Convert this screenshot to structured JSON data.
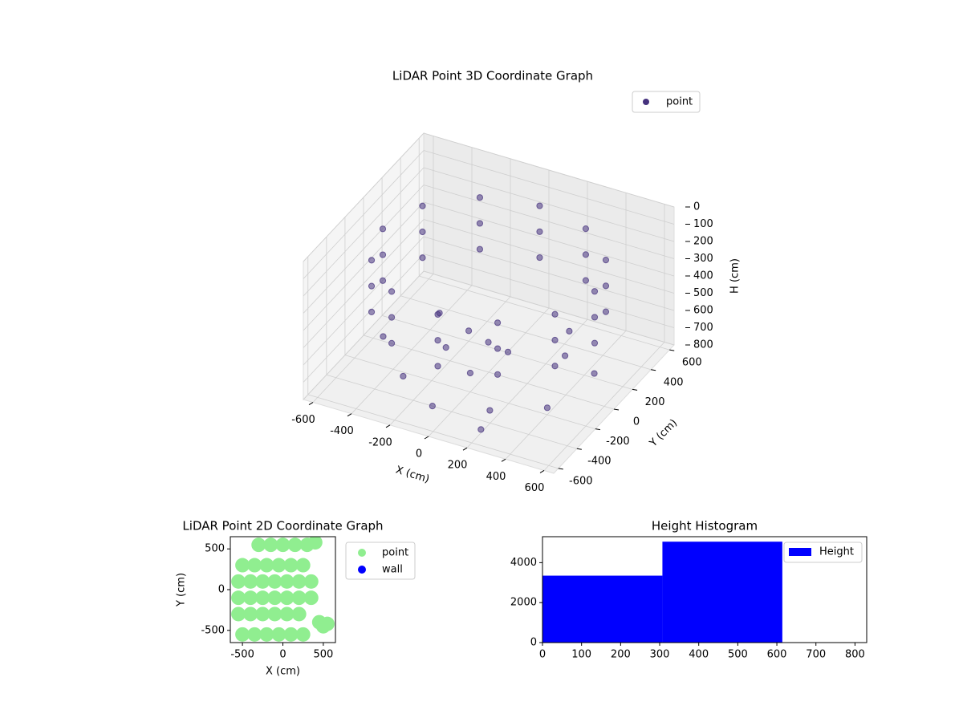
{
  "chart_data": [
    {
      "type": "scatter3d",
      "title": "LiDAR Point 3D Coordinate Graph",
      "xlabel": "X (cm)",
      "ylabel": "Y (cm)",
      "zlabel": "H (cm)",
      "xlim": [
        -650,
        650
      ],
      "ylim": [
        -650,
        650
      ],
      "zlim": [
        0,
        800
      ],
      "z_inverted": true,
      "xticks": [
        -600,
        -400,
        -200,
        0,
        200,
        400,
        600
      ],
      "yticks": [
        -600,
        -400,
        -200,
        0,
        200,
        400,
        600
      ],
      "zticks": [
        0,
        100,
        200,
        300,
        400,
        500,
        600,
        700,
        800
      ],
      "grid": true,
      "legend": "upper right",
      "series": [
        {
          "name": "point",
          "color": "#46327e",
          "x": [
            550,
            476,
            275,
            0,
            -275,
            -476,
            -550,
            -476,
            -275,
            0,
            275,
            476,
            550,
            476,
            275,
            0,
            -275,
            -476,
            -550,
            -476,
            -275,
            0,
            275,
            476,
            550,
            476,
            275,
            0,
            -275,
            -476,
            -550,
            -476,
            -275,
            0,
            275,
            476,
            -500,
            -300,
            -100,
            200,
            100,
            -50,
            300,
            400,
            0,
            -200,
            150,
            -400,
            500,
            250,
            -150
          ],
          "y": [
            0,
            275,
            476,
            550,
            476,
            275,
            0,
            -275,
            -476,
            -550,
            -476,
            -275,
            0,
            275,
            476,
            550,
            476,
            275,
            0,
            -275,
            -476,
            -550,
            -476,
            -275,
            0,
            275,
            476,
            550,
            476,
            275,
            0,
            -275,
            -476,
            -550,
            -476,
            -275,
            -100,
            -300,
            -400,
            -500,
            0,
            100,
            200,
            -200,
            -200,
            200,
            -300,
            300,
            100,
            350,
            -150
          ],
          "h": [
            150,
            150,
            150,
            150,
            150,
            150,
            150,
            150,
            150,
            150,
            150,
            150,
            300,
            300,
            300,
            300,
            300,
            300,
            300,
            300,
            300,
            300,
            300,
            300,
            450,
            450,
            450,
            450,
            450,
            450,
            450,
            450,
            450,
            450,
            450,
            450,
            700,
            750,
            800,
            780,
            650,
            700,
            720,
            760,
            690,
            740,
            800,
            760,
            700,
            680,
            620
          ]
        }
      ]
    },
    {
      "type": "scatter",
      "title": "LiDAR Point 2D Coordinate Graph",
      "xlabel": "X (cm)",
      "ylabel": "Y (cm)",
      "xlim": [
        -650,
        650
      ],
      "ylim": [
        -650,
        650
      ],
      "xticks": [
        -500,
        0,
        500
      ],
      "yticks": [
        -500,
        0,
        500
      ],
      "legend": "outside right",
      "series": [
        {
          "name": "point",
          "color": "#90ee90",
          "x": [
            -500,
            -350,
            -200,
            -50,
            100,
            250,
            -550,
            -400,
            -250,
            -100,
            50,
            200,
            -550,
            -400,
            -250,
            -100,
            50,
            200,
            350,
            -550,
            -400,
            -250,
            -100,
            50,
            200,
            350,
            -500,
            -350,
            -200,
            -50,
            100,
            250,
            -300,
            -150,
            0,
            150,
            300,
            450,
            500,
            550,
            400
          ],
          "y": [
            -550,
            -550,
            -550,
            -550,
            -550,
            -550,
            -300,
            -300,
            -300,
            -300,
            -300,
            -300,
            -100,
            -100,
            -100,
            -100,
            -100,
            -100,
            -100,
            100,
            100,
            100,
            100,
            100,
            100,
            100,
            300,
            300,
            300,
            300,
            300,
            300,
            550,
            550,
            550,
            550,
            550,
            -400,
            -450,
            -420,
            580
          ]
        },
        {
          "name": "wall",
          "color": "#0000ff",
          "x": [],
          "y": []
        }
      ]
    },
    {
      "type": "histogram",
      "title": "Height Histogram",
      "xlim": [
        0,
        830
      ],
      "ylim": [
        0,
        5300
      ],
      "xticks": [
        0,
        100,
        200,
        300,
        400,
        500,
        600,
        700,
        800
      ],
      "yticks": [
        0,
        2000,
        4000
      ],
      "legend": "upper right",
      "series": [
        {
          "name": "Height",
          "color": "#0000ff",
          "bins": [
            0,
            307,
            614
          ],
          "counts": [
            3350,
            5050
          ]
        }
      ]
    }
  ]
}
